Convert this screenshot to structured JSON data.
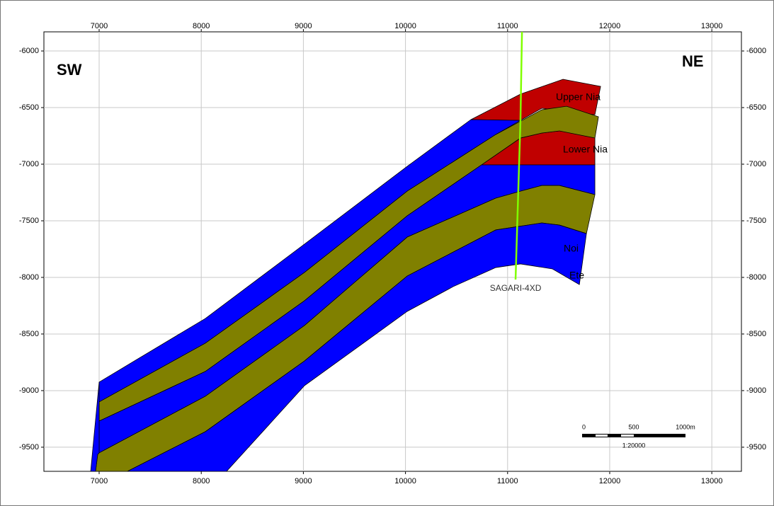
{
  "chart_data": {
    "type": "section",
    "xlim": [
      6459,
      13290
    ],
    "ylim": [
      -9713,
      -5831
    ],
    "xticks": [
      7000,
      8000,
      9000,
      10000,
      11000,
      12000,
      13000
    ],
    "yticks": [
      -6000,
      -6500,
      -7000,
      -7500,
      -8000,
      -8500,
      -9000,
      -9500
    ],
    "grid": true,
    "layers": [
      {
        "color": "#c00000",
        "x": [
          10641,
          11126,
          11543,
          11911,
          11855,
          11335,
          11126
        ],
        "y": [
          -6606,
          -6381,
          -6250,
          -6313,
          -6563,
          -6506,
          -6613
        ]
      },
      {
        "color": "#c00000",
        "x": [
          10745,
          11126,
          11335,
          11508,
          11855,
          11855
        ],
        "y": [
          -7006,
          -6769,
          -6725,
          -6706,
          -6756,
          -7006
        ]
      },
      {
        "color": "#0000ff",
        "x": [
          7000,
          7173,
          8040,
          9011,
          10017,
          10641,
          11126,
          10884,
          10017,
          9011,
          8040,
          7000
        ],
        "y": [
          -8925,
          -8831,
          -8363,
          -7706,
          -7019,
          -6606,
          -6613,
          -6738,
          -7238,
          -7956,
          -8581,
          -9100
        ]
      },
      {
        "color": "#808000",
        "x": [
          7000,
          8040,
          9011,
          10017,
          10884,
          11335,
          11578,
          11890,
          11855,
          11508,
          11335,
          11126,
          10745,
          10017,
          9011,
          8040,
          7000
        ],
        "y": [
          -9100,
          -8581,
          -7956,
          -7238,
          -6738,
          -6519,
          -6488,
          -6581,
          -6769,
          -6706,
          -6725,
          -6769,
          -7006,
          -7456,
          -8206,
          -8831,
          -9269
        ]
      },
      {
        "color": "#0000ff",
        "x": [
          7000,
          8040,
          9011,
          10017,
          10745,
          11855,
          11855,
          11508,
          11335,
          11126,
          10884,
          10017,
          9011,
          8040,
          7000
        ],
        "y": [
          -9269,
          -8831,
          -8206,
          -7456,
          -7006,
          -7006,
          -7269,
          -7188,
          -7188,
          -7238,
          -7300,
          -7644,
          -8425,
          -9050,
          -9550
        ]
      },
      {
        "color": "#808000",
        "x": [
          7000,
          8040,
          9011,
          10017,
          10884,
          11126,
          11335,
          11508,
          11855,
          11772,
          11508,
          11335,
          10884,
          10017,
          9011,
          8040,
          7277,
          6965,
          6986
        ],
        "y": [
          -9550,
          -9050,
          -8425,
          -7644,
          -7300,
          -7238,
          -7188,
          -7188,
          -7269,
          -7613,
          -7538,
          -7519,
          -7581,
          -7988,
          -8738,
          -9363,
          -9713,
          -9713,
          -9563
        ]
      },
      {
        "color": "#0000ff",
        "x": [
          7277,
          8040,
          9011,
          10017,
          10884,
          11335,
          11508,
          11772,
          11703,
          11439,
          11126,
          10884,
          10468,
          10017,
          9011,
          8248
        ],
        "y": [
          -9713,
          -9363,
          -8738,
          -7988,
          -7581,
          -7519,
          -7538,
          -7613,
          -8063,
          -7925,
          -7881,
          -7913,
          -8081,
          -8300,
          -8956,
          -9713
        ]
      },
      {
        "color": "#0000ff",
        "x": [
          7000,
          7000,
          6986,
          6965,
          6917
        ],
        "y": [
          -8925,
          -9550,
          -9563,
          -9713,
          -9713
        ]
      }
    ],
    "well": {
      "name": "SAGARI-4XD",
      "color": "#80ff00",
      "x": [
        11141,
        11126,
        11078
      ],
      "y": [
        -5831,
        -6613,
        -8019
      ]
    },
    "annotations": [
      "SW",
      "NE",
      "Upper Nia",
      "Lower Nia",
      "Noi",
      "Ete"
    ],
    "scale_bar": {
      "ticks": [
        "0",
        "500",
        "1000m"
      ],
      "ratio": "1:20000"
    }
  }
}
